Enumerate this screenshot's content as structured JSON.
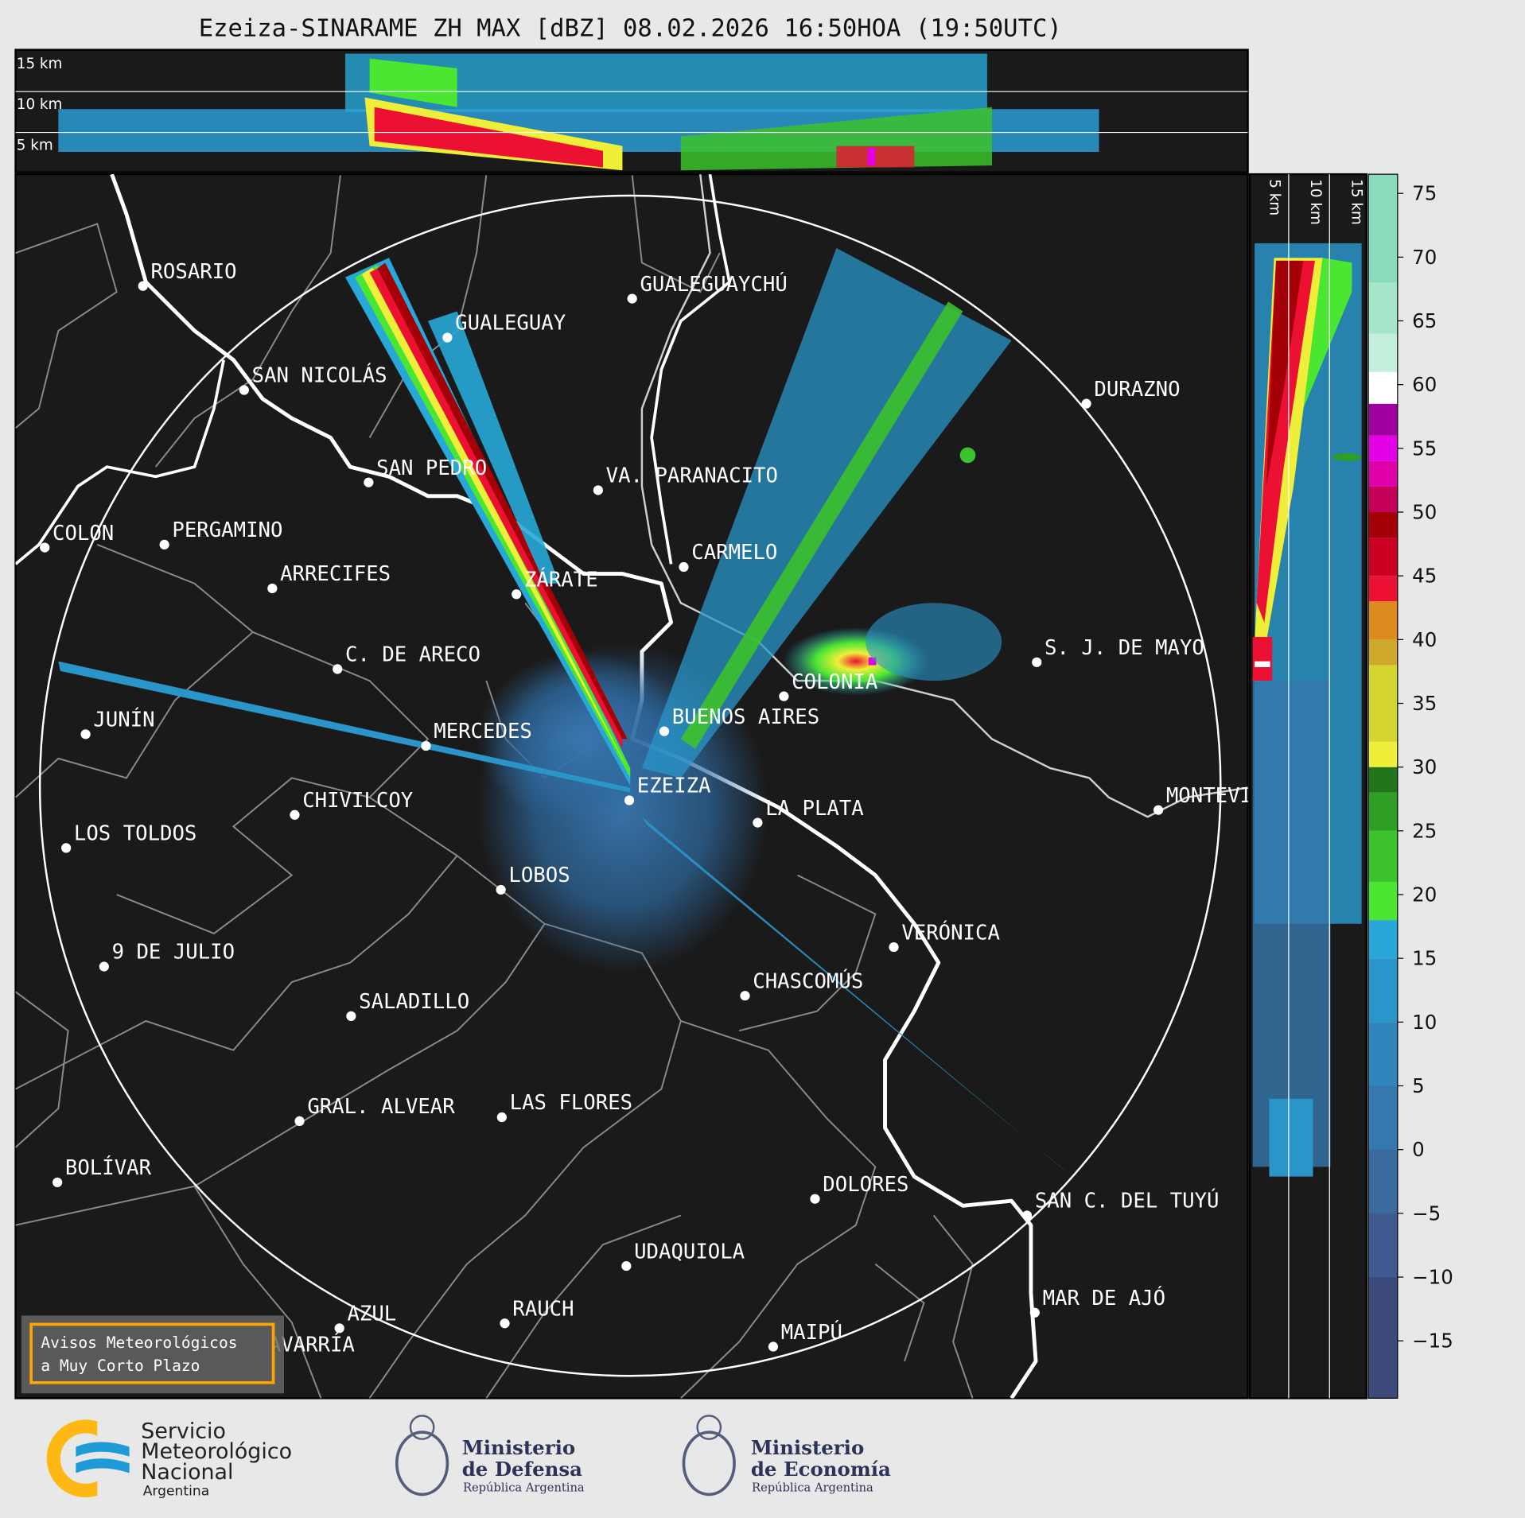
{
  "title": "Ezeiza-SINARAME ZH MAX [dBZ] 08.02.2026 16:50HOA (19:50UTC)",
  "top_panel": {
    "height_labels": [
      "15 km",
      "10 km",
      "5 km"
    ]
  },
  "side_panel": {
    "height_labels": [
      "5 km",
      "10 km",
      "15 km"
    ]
  },
  "colorbar": {
    "ticks": [
      "75",
      "70",
      "65",
      "60",
      "55",
      "50",
      "45",
      "40",
      "35",
      "30",
      "25",
      "20",
      "15",
      "10",
      "5",
      "0",
      "−5",
      "−10",
      "−15"
    ],
    "tick_values": [
      75,
      70,
      65,
      60,
      55,
      50,
      45,
      40,
      35,
      30,
      25,
      20,
      15,
      10,
      5,
      0,
      -5,
      -10,
      -15
    ],
    "range": [
      -19.5,
      76.5
    ],
    "colors": [
      {
        "from": -19.5,
        "to": 5,
        "color": "#3b4a7a"
      },
      {
        "from": -10,
        "to": -5,
        "color": "#3e5a8e"
      },
      {
        "from": -5,
        "to": 0,
        "color": "#3a6a9e"
      },
      {
        "from": 0,
        "to": 5,
        "color": "#3578ad"
      },
      {
        "from": 5,
        "to": 10,
        "color": "#2f86bd"
      },
      {
        "from": 10,
        "to": 15,
        "color": "#2a95c9"
      },
      {
        "from": 15,
        "to": 18,
        "color": "#27a8d8"
      },
      {
        "from": 18,
        "to": 21,
        "color": "#4be632"
      },
      {
        "from": 21,
        "to": 25,
        "color": "#3cc22c"
      },
      {
        "from": 25,
        "to": 28,
        "color": "#2e9e25"
      },
      {
        "from": 28,
        "to": 30,
        "color": "#23751c"
      },
      {
        "from": 30,
        "to": 32,
        "color": "#efef3a"
      },
      {
        "from": 32,
        "to": 38,
        "color": "#d4d530"
      },
      {
        "from": 38,
        "to": 40,
        "color": "#cfa92b"
      },
      {
        "from": 40,
        "to": 43,
        "color": "#dd8a1e"
      },
      {
        "from": 43,
        "to": 45,
        "color": "#ec1032"
      },
      {
        "from": 45,
        "to": 48,
        "color": "#cb0022"
      },
      {
        "from": 48,
        "to": 50,
        "color": "#a40008"
      },
      {
        "from": 50,
        "to": 52,
        "color": "#c40058"
      },
      {
        "from": 52,
        "to": 54,
        "color": "#e000a8"
      },
      {
        "from": 54,
        "to": 56,
        "color": "#e400e4"
      },
      {
        "from": 56,
        "to": 58.5,
        "color": "#a0009e"
      },
      {
        "from": 58.5,
        "to": 61,
        "color": "#ffffff"
      },
      {
        "from": 61,
        "to": 64,
        "color": "#c4eedc"
      },
      {
        "from": 64,
        "to": 68,
        "color": "#a6e6c8"
      },
      {
        "from": 68,
        "to": 76.5,
        "color": "#88dcbb"
      }
    ]
  },
  "map": {
    "background": "#1a1a1a",
    "cities": [
      "ROSARIO",
      "GUALEGUAYCHÚ",
      "GUALEGUAY",
      "SAN NICOLÁS",
      "DURAZNO",
      "SAN PEDRO",
      "VA. PARANACITO",
      "COLON",
      "PERGAMINO",
      "CARMELO",
      "ARRECIFES",
      "ZÁRATE",
      "C. DE ARECO",
      "S. J. DE MAYO",
      "COLONIA",
      "BUENOS AIRES",
      "JUNÍN",
      "MERCEDES",
      "EZEIZA",
      "MONTEVIDEO",
      "CHIVILCOY",
      "LA PLATA",
      "LOS TOLDOS",
      "LOBOS",
      "VERÓNICA",
      "9 DE JULIO",
      "CHASCOMÚS",
      "SALADILLO",
      "GRAL. ALVEAR",
      "LAS FLORES",
      "BOLÍVAR",
      "DOLORES",
      "SAN C. DEL TUYÚ",
      "UDAQUIOLA",
      "MAR DE AJÓ",
      "RAUCH",
      "AZUL",
      "OLAVARRÍA",
      "MAIPÚ"
    ]
  },
  "alert_button": {
    "line1": "Avisos Meteorológicos",
    "line2": "a Muy Corto Plazo",
    "border_color": "#ffa500"
  },
  "footer": {
    "smn": {
      "line1": "Servicio",
      "line2": "Meteorológico",
      "line3": "Nacional",
      "line4": "Argentina"
    },
    "defensa": {
      "line1": "Ministerio",
      "line2": "de Defensa",
      "line3": "República Argentina"
    },
    "economia": {
      "line1": "Ministerio",
      "line2": "de Economía",
      "line3": "República Argentina"
    }
  }
}
